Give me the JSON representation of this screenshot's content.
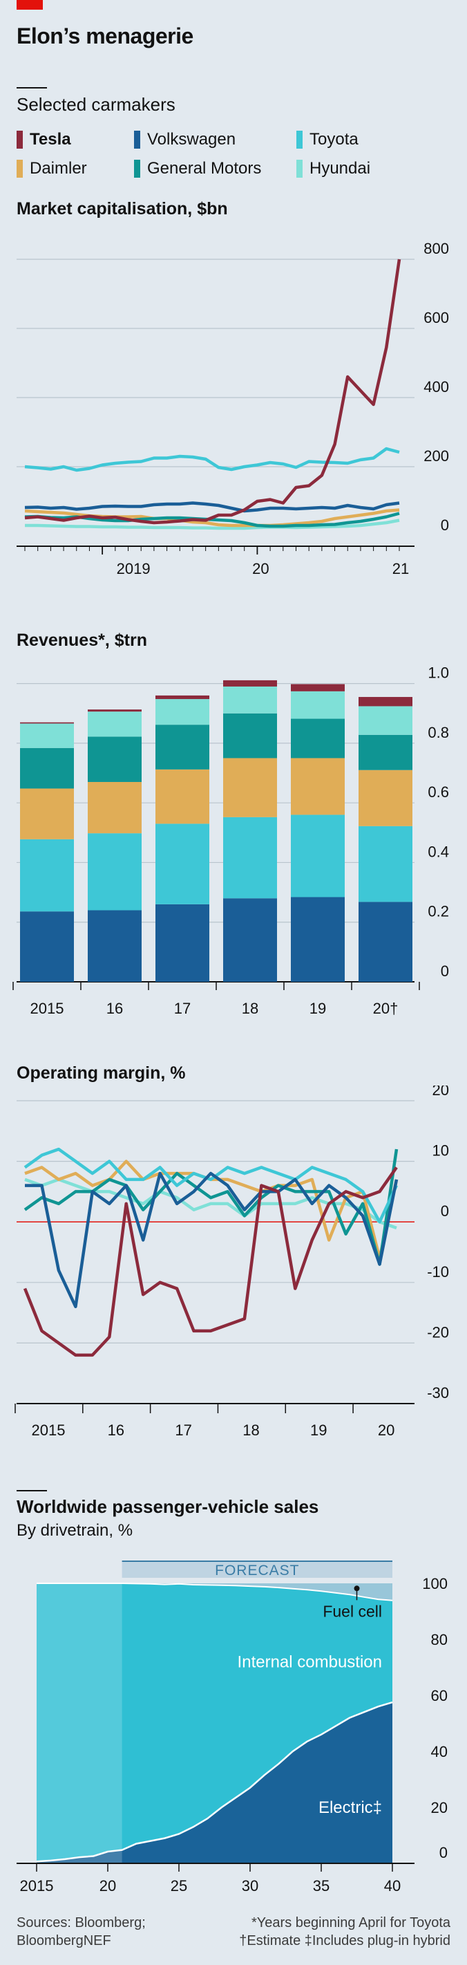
{
  "title": "Elon’s menagerie",
  "legend": {
    "heading": "Selected carmakers",
    "items": [
      {
        "label": "Tesla",
        "color": "#8c2a3c",
        "bold": true
      },
      {
        "label": "Volkswagen",
        "color": "#1a5e97"
      },
      {
        "label": "Toyota",
        "color": "#3ec7d6"
      },
      {
        "label": "Daimler",
        "color": "#e0ad57"
      },
      {
        "label": "General Motors",
        "color": "#0f9593"
      },
      {
        "label": "Hyundai",
        "color": "#7fe0d7"
      }
    ]
  },
  "chart_data": [
    {
      "type": "line",
      "title": "Market capitalisation, $bn",
      "x_tick_labels": [
        "2019",
        "20",
        "21"
      ],
      "y_ticks": [
        0,
        200,
        400,
        600,
        800
      ],
      "ylim": [
        0,
        850
      ],
      "x": [
        "2018-07",
        "2018-08",
        "2018-09",
        "2018-10",
        "2018-11",
        "2018-12",
        "2019-01",
        "2019-02",
        "2019-03",
        "2019-04",
        "2019-05",
        "2019-06",
        "2019-07",
        "2019-08",
        "2019-09",
        "2019-10",
        "2019-11",
        "2019-12",
        "2020-01",
        "2020-02",
        "2020-03",
        "2020-04",
        "2020-05",
        "2020-06",
        "2020-07",
        "2020-08",
        "2020-09",
        "2020-10",
        "2020-11",
        "2020-12"
      ],
      "series": [
        {
          "name": "Tesla",
          "values": [
            52,
            55,
            50,
            45,
            52,
            57,
            52,
            54,
            47,
            42,
            38,
            40,
            43,
            47,
            45,
            60,
            60,
            75,
            100,
            105,
            95,
            140,
            145,
            175,
            265,
            460,
            420,
            380,
            545,
            800
          ]
        },
        {
          "name": "Volkswagen",
          "values": [
            82,
            83,
            80,
            82,
            77,
            80,
            85,
            86,
            85,
            85,
            90,
            92,
            92,
            95,
            92,
            88,
            80,
            72,
            75,
            80,
            80,
            78,
            80,
            82,
            80,
            88,
            82,
            78,
            90,
            95
          ]
        },
        {
          "name": "Toyota",
          "values": [
            200,
            197,
            193,
            200,
            190,
            195,
            205,
            210,
            213,
            215,
            225,
            225,
            230,
            228,
            222,
            198,
            192,
            200,
            205,
            212,
            208,
            198,
            215,
            213,
            212,
            210,
            220,
            225,
            252,
            242
          ]
        },
        {
          "name": "Daimler",
          "values": [
            72,
            70,
            68,
            66,
            62,
            58,
            56,
            55,
            55,
            56,
            50,
            50,
            45,
            40,
            38,
            32,
            30,
            30,
            30,
            30,
            32,
            35,
            38,
            42,
            50,
            55,
            60,
            65,
            72,
            75
          ]
        },
        {
          "name": "General Motors",
          "values": [
            55,
            56,
            53,
            52,
            55,
            50,
            46,
            44,
            44,
            48,
            50,
            52,
            52,
            50,
            48,
            46,
            44,
            38,
            30,
            28,
            28,
            30,
            30,
            32,
            33,
            38,
            42,
            48,
            55,
            65
          ]
        },
        {
          "name": "Hyundai",
          "values": [
            30,
            30,
            29,
            28,
            27,
            27,
            26,
            26,
            25,
            25,
            24,
            24,
            24,
            23,
            23,
            22,
            22,
            22,
            24,
            25,
            25,
            24,
            25,
            26,
            27,
            28,
            30,
            34,
            38,
            45
          ]
        }
      ]
    },
    {
      "type": "bar",
      "title": "Revenues*, $trn",
      "categories": [
        "2015",
        "16",
        "17",
        "18",
        "19",
        "20†"
      ],
      "y_ticks": [
        "0",
        "0.2",
        "0.4",
        "0.6",
        "0.8",
        "1.0"
      ],
      "ylim": [
        0,
        1.02
      ],
      "series": [
        {
          "name": "Volkswagen",
          "values": [
            0.236,
            0.24,
            0.26,
            0.28,
            0.284,
            0.268
          ]
        },
        {
          "name": "Toyota",
          "values": [
            0.242,
            0.258,
            0.27,
            0.272,
            0.276,
            0.254
          ]
        },
        {
          "name": "Daimler",
          "values": [
            0.17,
            0.172,
            0.182,
            0.198,
            0.19,
            0.188
          ]
        },
        {
          "name": "General Motors",
          "values": [
            0.136,
            0.152,
            0.15,
            0.15,
            0.132,
            0.118
          ]
        },
        {
          "name": "Hyundai",
          "values": [
            0.082,
            0.084,
            0.086,
            0.09,
            0.092,
            0.096
          ]
        },
        {
          "name": "Tesla",
          "values": [
            0.004,
            0.007,
            0.012,
            0.021,
            0.024,
            0.031
          ]
        }
      ]
    },
    {
      "type": "line",
      "title": "Operating margin, %",
      "x_tick_labels": [
        "2015",
        "16",
        "17",
        "18",
        "19",
        "20"
      ],
      "y_ticks": [
        -30,
        -20,
        -10,
        0,
        10,
        20
      ],
      "ylim": [
        -30,
        20
      ],
      "x": [
        2015.0,
        2015.25,
        2015.5,
        2015.75,
        2016.0,
        2016.25,
        2016.5,
        2016.75,
        2017.0,
        2017.25,
        2017.5,
        2017.75,
        2018.0,
        2018.25,
        2018.5,
        2018.75,
        2019.0,
        2019.25,
        2019.5,
        2019.75,
        2020.0,
        2020.25,
        2020.5
      ],
      "series": [
        {
          "name": "Tesla",
          "values": [
            -11,
            -18,
            -20,
            -22,
            -22,
            -19,
            3,
            -12,
            -10,
            -11,
            -18,
            -18,
            -17,
            -16,
            6,
            5,
            -11,
            -3,
            3,
            5,
            4,
            5,
            9
          ]
        },
        {
          "name": "Volkswagen",
          "values": [
            6,
            6,
            -8,
            -14,
            5,
            3,
            6,
            -3,
            8,
            3,
            5,
            8,
            6,
            2,
            5,
            5,
            7,
            3,
            6,
            4,
            1,
            -7,
            7
          ]
        },
        {
          "name": "Toyota",
          "values": [
            9,
            11,
            12,
            10,
            8,
            10,
            7,
            7,
            9,
            6,
            8,
            7,
            9,
            8,
            9,
            8,
            7,
            9,
            8,
            7,
            5,
            0,
            6
          ]
        },
        {
          "name": "Daimler",
          "values": [
            8,
            9,
            7,
            8,
            6,
            7,
            10,
            7,
            8,
            8,
            8,
            7,
            7,
            6,
            5,
            6,
            6,
            7,
            -3,
            4,
            5,
            -6,
            7
          ]
        },
        {
          "name": "General Motors",
          "values": [
            2,
            4,
            3,
            5,
            5,
            7,
            6,
            2,
            5,
            8,
            6,
            4,
            5,
            1,
            4,
            6,
            5,
            5,
            5,
            -2,
            3,
            -7,
            12
          ]
        },
        {
          "name": "Hyundai",
          "values": [
            7,
            6,
            7,
            6,
            5,
            5,
            4,
            3,
            5,
            4,
            2,
            3,
            3,
            1,
            3,
            3,
            3,
            4,
            3,
            3,
            2,
            0,
            -1
          ]
        }
      ]
    },
    {
      "type": "area",
      "title": "Worldwide passenger-vehicle sales",
      "subtitle": "By drivetrain, %",
      "annotation": "FORECAST",
      "forecast_start": 2021,
      "x_ticks": [
        "2015",
        "20",
        "25",
        "30",
        "35",
        "40"
      ],
      "y_ticks": [
        0,
        20,
        40,
        60,
        80,
        100
      ],
      "ylim": [
        0,
        100
      ],
      "x": [
        2015,
        2016,
        2017,
        2018,
        2019,
        2020,
        2021,
        2022,
        2023,
        2024,
        2025,
        2026,
        2027,
        2028,
        2029,
        2030,
        2031,
        2032,
        2033,
        2034,
        2035,
        2036,
        2037,
        2038,
        2039,
        2040
      ],
      "series": [
        {
          "name": "Electric‡",
          "values": [
            0.7,
            1.0,
            1.5,
            2.2,
            2.6,
            4.2,
            4.8,
            7.0,
            8.0,
            9.0,
            10.5,
            13.0,
            16.0,
            20.0,
            23.5,
            27.0,
            31.5,
            35.5,
            40.0,
            43.5,
            46.0,
            49.0,
            52.0,
            54.0,
            56.0,
            57.5
          ]
        },
        {
          "name": "Internal combustion",
          "values": [
            99.3,
            99.0,
            98.5,
            97.8,
            97.4,
            95.8,
            95.2,
            92.9,
            91.8,
            90.6,
            89.3,
            86.5,
            83.4,
            79.3,
            75.7,
            72.0,
            67.3,
            63.0,
            58.1,
            54.2,
            51.2,
            47.6,
            44.0,
            41.1,
            38.3,
            36.4
          ]
        },
        {
          "name": "Fuel cell",
          "values": [
            0,
            0,
            0,
            0,
            0,
            0,
            0,
            0.1,
            0.2,
            0.4,
            0.2,
            0.5,
            0.6,
            0.7,
            0.8,
            1.0,
            1.2,
            1.5,
            1.9,
            2.3,
            2.8,
            3.4,
            4.0,
            4.9,
            5.7,
            6.1
          ]
        }
      ],
      "labels": {
        "fuel_cell": "Fuel cell",
        "ice": "Internal combustion",
        "electric": "Electric‡"
      }
    }
  ],
  "footer": {
    "sources_1": "Sources: Bloomberg;",
    "sources_2": "BloombergNEF",
    "note_1": "*Years beginning April for Toyota",
    "note_2": "†Estimate   ‡Includes plug-in hybrid"
  }
}
